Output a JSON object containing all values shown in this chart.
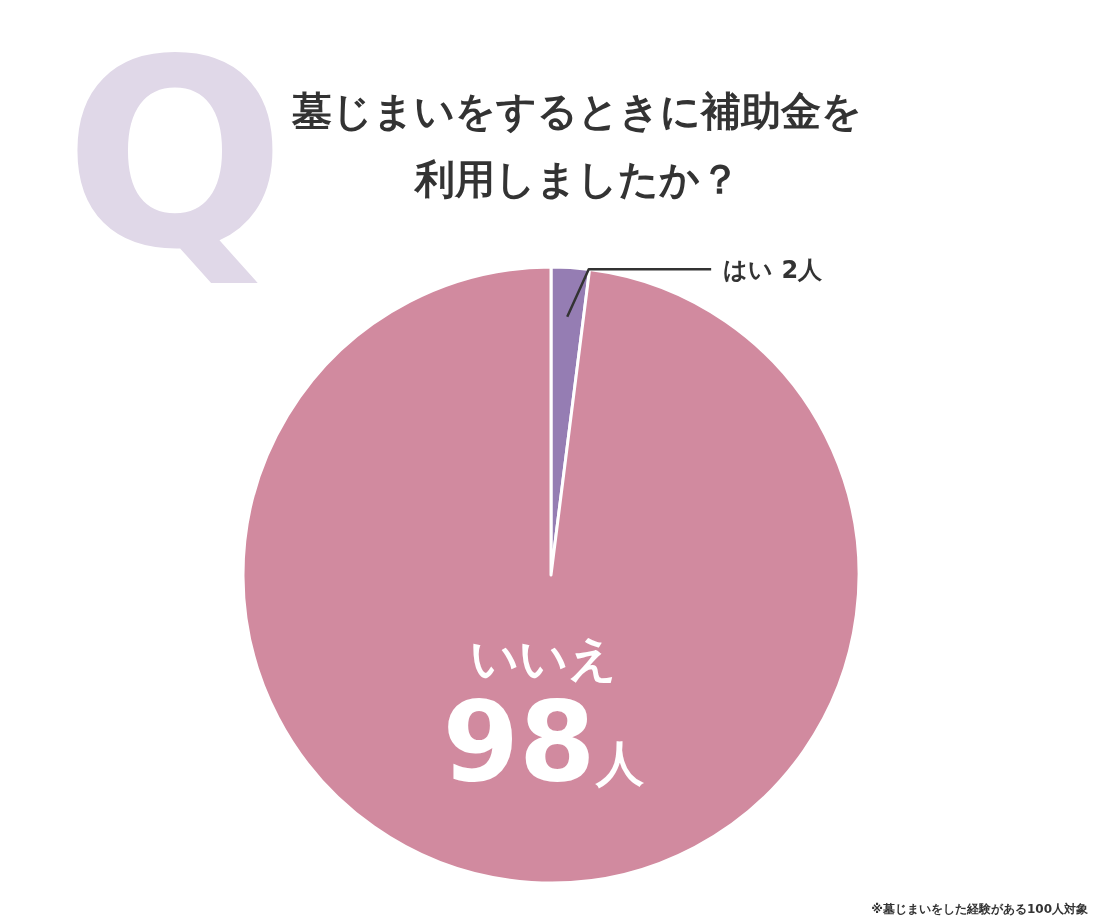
{
  "chart_data": {
    "type": "pie",
    "title": "墓じまいをするときに補助金を利用しましたか？",
    "categories": [
      "はい",
      "いいえ"
    ],
    "values": [
      2,
      98
    ],
    "colors": [
      "#957db3",
      "#d18a9f"
    ],
    "value_labels": [
      "2人",
      "98人"
    ],
    "annotations": [
      "Q",
      "※墓じまいをした経験がある100人対象"
    ]
  }
}
